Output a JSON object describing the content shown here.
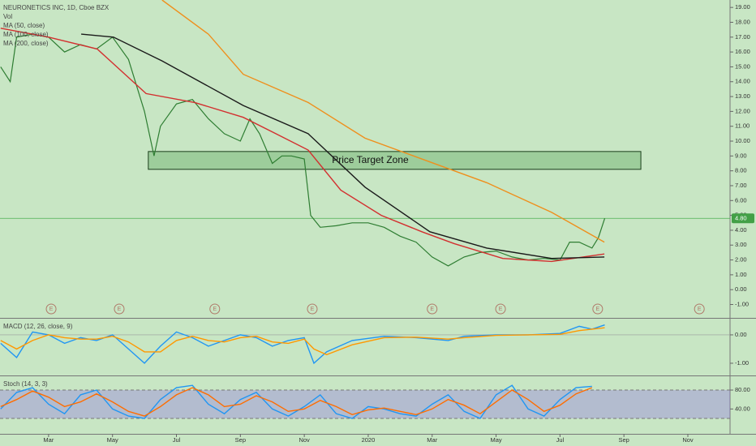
{
  "chart_data": [
    {
      "type": "line",
      "title": "NEURONETICS INC, 1D, Cboe BZX",
      "volume_label": "Vol",
      "xlim": [
        -1.52,
        21.32
      ],
      "ylim": [
        -1.9,
        19.5
      ],
      "yticks": [
        {
          "value": -1,
          "label": "-1.00"
        },
        {
          "value": 0,
          "label": "0.00"
        },
        {
          "value": 1,
          "label": "1.00"
        },
        {
          "value": 2,
          "label": "2.00"
        },
        {
          "value": 3,
          "label": "3.00"
        },
        {
          "value": 4,
          "label": "4.00"
        },
        {
          "value": 5,
          "label": "5.00"
        },
        {
          "value": 6,
          "label": "6.00"
        },
        {
          "value": 7,
          "label": "7.00"
        },
        {
          "value": 8,
          "label": "8.00"
        },
        {
          "value": 9,
          "label": "9.00"
        },
        {
          "value": 10,
          "label": "10.00"
        },
        {
          "value": 11,
          "label": "11.00"
        },
        {
          "value": 12,
          "label": "12.00"
        },
        {
          "value": 13,
          "label": "13.00"
        },
        {
          "value": 14,
          "label": "14.00"
        },
        {
          "value": 15,
          "label": "15.00"
        },
        {
          "value": 16,
          "label": "16.00"
        },
        {
          "value": 17,
          "label": "17.00"
        },
        {
          "value": 18,
          "label": "18.00"
        },
        {
          "value": 19,
          "label": "19.00"
        }
      ],
      "price": {
        "color": "#2e7d32",
        "x": [
          -1.5,
          -1.2,
          -1,
          -0.5,
          0,
          0.5,
          1,
          1.5,
          2,
          2.5,
          3,
          3.3,
          3.5,
          4,
          4.5,
          5,
          5.5,
          6,
          6.3,
          6.6,
          7,
          7.3,
          7.6,
          8,
          8.2,
          8.5,
          9,
          9.5,
          10,
          10.5,
          11,
          11.5,
          12,
          12.5,
          13,
          13.5,
          14,
          14.5,
          15,
          15.5,
          16,
          16.3,
          16.6,
          17,
          17.2,
          17.4
        ],
        "values": [
          15,
          14,
          17,
          17.2,
          17,
          16,
          16.5,
          16.2,
          17,
          15.5,
          12,
          9,
          11,
          12.5,
          12.8,
          11.5,
          10.5,
          10,
          11.5,
          10.5,
          8.5,
          9,
          9,
          8.8,
          5,
          4.2,
          4.3,
          4.5,
          4.5,
          4.2,
          3.6,
          3.2,
          2.2,
          1.6,
          2.2,
          2.5,
          2.6,
          2.2,
          2,
          2.1,
          2,
          3.2,
          3.2,
          2.8,
          3.5,
          4.8
        ]
      },
      "series": [
        {
          "name": "MA (50, close)",
          "color": "#d32f2f",
          "x": [
            -1.5,
            0,
            1.52,
            3.05,
            4.57,
            6.09,
            7.11,
            8.12,
            9.14,
            10.41,
            11.68,
            12.69,
            14.21,
            15.74,
            17.39
          ],
          "values": [
            17.6,
            17,
            16.2,
            13.2,
            12.6,
            11.6,
            10.5,
            9.4,
            6.7,
            5,
            3.9,
            3.1,
            2.1,
            1.9,
            2.4
          ]
        },
        {
          "name": "MA (100, close)",
          "color": "#1a1a1a",
          "x": [
            1.02,
            2.03,
            3.55,
            6.09,
            8.12,
            9.9,
            11.93,
            13.71,
            15.74,
            17.39
          ],
          "values": [
            17.2,
            17,
            15.4,
            12.4,
            10.5,
            6.9,
            3.9,
            2.8,
            2.1,
            2.2
          ]
        },
        {
          "name": "MA (200, close)",
          "color": "#ef8f1c",
          "x": [
            3.55,
            5.0,
            6.09,
            8.12,
            9.9,
            11.93,
            13.71,
            15.74,
            17.39
          ],
          "values": [
            19.5,
            17.2,
            14.5,
            12.6,
            10.2,
            8.6,
            7.2,
            5.2,
            3.2
          ]
        }
      ],
      "zone": {
        "label": "Price Target Zone",
        "xlim": [
          3.12,
          18.53
        ],
        "ylim": [
          8.1,
          9.3
        ]
      },
      "last_price": {
        "value": 4.8,
        "label": "4.80"
      },
      "earnings": {
        "label": "E",
        "x": [
          0.08,
          2.21,
          5.2,
          8.25,
          12.0,
          14.14,
          17.18,
          20.36
        ]
      }
    },
    {
      "type": "line",
      "title": "MACD (12, 26, close, 9)",
      "xlim": [
        -1.52,
        21.32
      ],
      "ylim": [
        -1.43,
        0.57
      ],
      "yticks": [
        {
          "value": 0,
          "label": "0.00"
        },
        {
          "value": -1,
          "label": "-1.00"
        }
      ],
      "series": [
        {
          "color": "#2196f3",
          "x": [
            -1.5,
            -1,
            -0.5,
            0,
            0.5,
            1,
            1.5,
            2,
            2.5,
            3,
            3.5,
            4,
            4.5,
            5,
            5.5,
            6,
            6.5,
            7,
            7.5,
            8,
            8.3,
            8.7,
            9.5,
            10.5,
            11.5,
            12.5,
            13,
            14,
            15,
            16,
            16.6,
            17,
            17.4
          ],
          "values": [
            -0.3,
            -0.8,
            0.1,
            0,
            -0.3,
            -0.1,
            -0.2,
            0,
            -0.5,
            -1.0,
            -0.4,
            0.1,
            -0.1,
            -0.4,
            -0.2,
            0,
            -0.1,
            -0.4,
            -0.2,
            -0.1,
            -1.0,
            -0.6,
            -0.2,
            -0.05,
            -0.1,
            -0.2,
            -0.05,
            0,
            0,
            0.05,
            0.3,
            0.2,
            0.35
          ]
        },
        {
          "color": "#ff9800",
          "x": [
            -1.5,
            -1,
            -0.5,
            0,
            0.5,
            1,
            1.5,
            2,
            2.5,
            3,
            3.5,
            4,
            4.5,
            5,
            5.5,
            6,
            6.5,
            7,
            7.5,
            8,
            8.3,
            8.7,
            9.5,
            10.5,
            11.5,
            12.5,
            13,
            14,
            15,
            16,
            16.6,
            17,
            17.4
          ],
          "values": [
            -0.2,
            -0.5,
            -0.2,
            0,
            -0.1,
            -0.15,
            -0.15,
            -0.05,
            -0.25,
            -0.6,
            -0.6,
            -0.2,
            -0.05,
            -0.2,
            -0.25,
            -0.1,
            -0.05,
            -0.25,
            -0.3,
            -0.15,
            -0.5,
            -0.7,
            -0.35,
            -0.1,
            -0.08,
            -0.15,
            -0.1,
            -0.02,
            0,
            0.02,
            0.15,
            0.2,
            0.25
          ]
        }
      ]
    },
    {
      "type": "line",
      "title": "Stoch (14, 3, 3)",
      "xlim": [
        -1.52,
        21.32
      ],
      "ylim": [
        -12.6,
        109.2
      ],
      "yticks": [
        {
          "value": 80,
          "label": "80.00"
        },
        {
          "value": 40,
          "label": "40.00"
        }
      ],
      "band": [
        20,
        80
      ],
      "series": [
        {
          "color": "#2196f3",
          "x": [
            -1.5,
            -1,
            -0.5,
            0,
            0.5,
            1,
            1.5,
            2,
            2.5,
            3,
            3.5,
            4,
            4.5,
            5,
            5.5,
            6,
            6.5,
            7,
            7.5,
            8,
            8.5,
            9,
            9.5,
            10,
            10.5,
            11,
            11.5,
            12,
            12.5,
            13,
            13.5,
            14,
            14.5,
            15,
            15.5,
            16,
            16.5,
            17
          ],
          "values": [
            40,
            75,
            85,
            50,
            30,
            70,
            80,
            40,
            25,
            20,
            60,
            85,
            90,
            50,
            30,
            60,
            75,
            40,
            25,
            45,
            70,
            30,
            20,
            45,
            40,
            30,
            25,
            50,
            70,
            35,
            20,
            70,
            90,
            40,
            25,
            60,
            85,
            88
          ]
        },
        {
          "color": "#ff6d00",
          "x": [
            -1.5,
            -1,
            -0.5,
            0,
            0.5,
            1,
            1.5,
            2,
            2.5,
            3,
            3.5,
            4,
            4.5,
            5,
            5.5,
            6,
            6.5,
            7,
            7.5,
            8,
            8.5,
            9,
            9.5,
            10,
            10.5,
            11,
            11.5,
            12,
            12.5,
            13,
            13.5,
            14,
            14.5,
            15,
            15.5,
            16,
            16.5,
            17
          ],
          "values": [
            45,
            60,
            78,
            65,
            45,
            55,
            72,
            55,
            35,
            25,
            45,
            70,
            85,
            70,
            45,
            50,
            68,
            55,
            35,
            40,
            58,
            45,
            28,
            38,
            42,
            35,
            28,
            40,
            60,
            48,
            30,
            55,
            80,
            60,
            35,
            48,
            72,
            85
          ]
        }
      ],
      "xticks": [
        {
          "value": 0,
          "label": "Mar"
        },
        {
          "value": 2,
          "label": "May"
        },
        {
          "value": 4,
          "label": "Jul"
        },
        {
          "value": 6,
          "label": "Sep"
        },
        {
          "value": 8,
          "label": "Nov"
        },
        {
          "value": 10,
          "label": "2020"
        },
        {
          "value": 12,
          "label": "Mar"
        },
        {
          "value": 14,
          "label": "May"
        },
        {
          "value": 16,
          "label": "Jul"
        },
        {
          "value": 18,
          "label": "Sep"
        },
        {
          "value": 20,
          "label": "Nov"
        }
      ]
    }
  ]
}
